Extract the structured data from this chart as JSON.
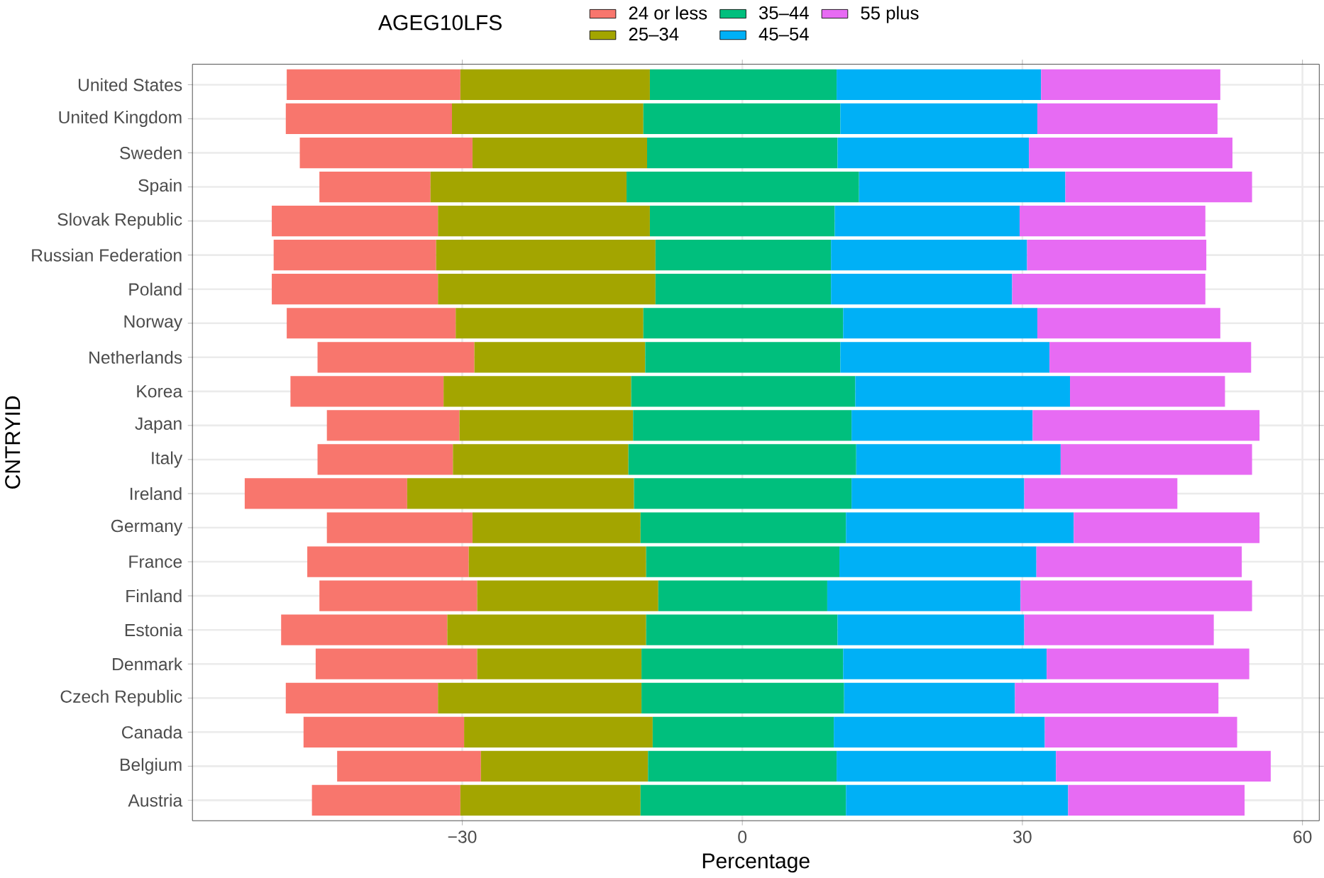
{
  "chart_data": {
    "type": "bar",
    "orientation": "horizontal",
    "xlabel": "Percentage",
    "ylabel": "CNTRYID",
    "legend_title": "AGEG10LFS",
    "legend": "top",
    "grid": true,
    "categories": [
      "United States",
      "United Kingdom",
      "Sweden",
      "Spain",
      "Slovak Republic",
      "Russian Federation",
      "Poland",
      "Norway",
      "Netherlands",
      "Korea",
      "Japan",
      "Italy",
      "Ireland",
      "Germany",
      "France",
      "Finland",
      "Estonia",
      "Denmark",
      "Czech Republic",
      "Canada",
      "Belgium",
      "Austria"
    ],
    "series": [
      {
        "name": "24 or less",
        "color": "#f8766d",
        "base": [
          -48.8,
          -48.9,
          -47.4,
          -45.3,
          -50.4,
          -50.2,
          -50.4,
          -48.8,
          -45.5,
          -48.4,
          -44.5,
          -45.5,
          -53.3,
          -44.5,
          -46.6,
          -45.3,
          -49.4,
          -45.7,
          -48.9,
          -47.0,
          -43.4,
          -46.1
        ],
        "values": [
          18.6,
          17.8,
          18.5,
          11.9,
          17.8,
          17.4,
          17.8,
          18.1,
          16.8,
          16.4,
          14.2,
          14.5,
          17.4,
          15.6,
          17.3,
          16.9,
          17.8,
          17.3,
          16.3,
          17.2,
          15.4,
          15.9
        ]
      },
      {
        "name": "25–34",
        "color": "#a3a500",
        "base": [
          -30.2,
          -31.1,
          -28.9,
          -33.4,
          -32.6,
          -32.8,
          -32.6,
          -30.7,
          -28.7,
          -32.0,
          -30.3,
          -31.0,
          -35.9,
          -28.9,
          -29.3,
          -28.4,
          -31.6,
          -28.4,
          -32.6,
          -29.8,
          -28.0,
          -30.2
        ],
        "values": [
          20.3,
          20.5,
          18.7,
          21.0,
          22.7,
          23.5,
          23.3,
          20.1,
          18.3,
          20.1,
          18.6,
          18.8,
          24.3,
          18.0,
          19.0,
          19.4,
          21.3,
          17.6,
          21.8,
          20.2,
          17.9,
          19.3
        ]
      },
      {
        "name": "35–44",
        "color": "#00bf7d",
        "base": [
          -9.9,
          -10.6,
          -10.2,
          -12.4,
          -9.9,
          -9.3,
          -9.3,
          -10.6,
          -10.4,
          -11.9,
          -11.7,
          -12.2,
          -11.6,
          -10.9,
          -10.3,
          -9.0,
          -10.3,
          -10.8,
          -10.8,
          -9.6,
          -10.1,
          -10.9
        ],
        "values": [
          20.0,
          21.1,
          20.4,
          24.9,
          19.8,
          18.8,
          18.8,
          21.4,
          20.9,
          24.0,
          23.4,
          24.4,
          23.3,
          22.0,
          20.7,
          18.1,
          20.5,
          21.6,
          21.7,
          19.4,
          20.2,
          22.0
        ]
      },
      {
        "name": "45–54",
        "color": "#00b0f6",
        "base": [
          10.1,
          10.5,
          10.2,
          12.5,
          9.9,
          9.5,
          9.5,
          10.8,
          10.5,
          12.1,
          11.7,
          12.2,
          11.7,
          11.1,
          10.4,
          9.1,
          10.2,
          10.8,
          10.9,
          9.8,
          10.1,
          11.1
        ],
        "values": [
          21.9,
          21.1,
          20.5,
          22.1,
          19.8,
          21.0,
          19.4,
          20.8,
          22.4,
          23.0,
          19.4,
          21.9,
          18.5,
          24.4,
          21.1,
          20.7,
          20.0,
          21.8,
          18.3,
          22.6,
          23.5,
          23.8
        ]
      },
      {
        "name": "55 plus",
        "color": "#e76bf3",
        "base": [
          32.0,
          31.6,
          30.7,
          34.6,
          29.7,
          30.5,
          28.9,
          31.6,
          32.9,
          35.1,
          31.1,
          34.1,
          30.2,
          35.5,
          31.5,
          29.8,
          30.2,
          32.6,
          29.2,
          32.4,
          33.6,
          34.9
        ],
        "values": [
          19.2,
          19.3,
          21.8,
          20.0,
          19.9,
          19.2,
          20.7,
          19.6,
          21.6,
          16.6,
          24.3,
          20.5,
          16.4,
          19.9,
          22.0,
          24.8,
          20.3,
          21.7,
          21.8,
          20.6,
          23.0,
          18.9
        ]
      }
    ],
    "xlim": [
      -58.9,
      61.8
    ],
    "xticks": [
      {
        "value": -30,
        "label": "−30"
      },
      0,
      30,
      60
    ]
  }
}
